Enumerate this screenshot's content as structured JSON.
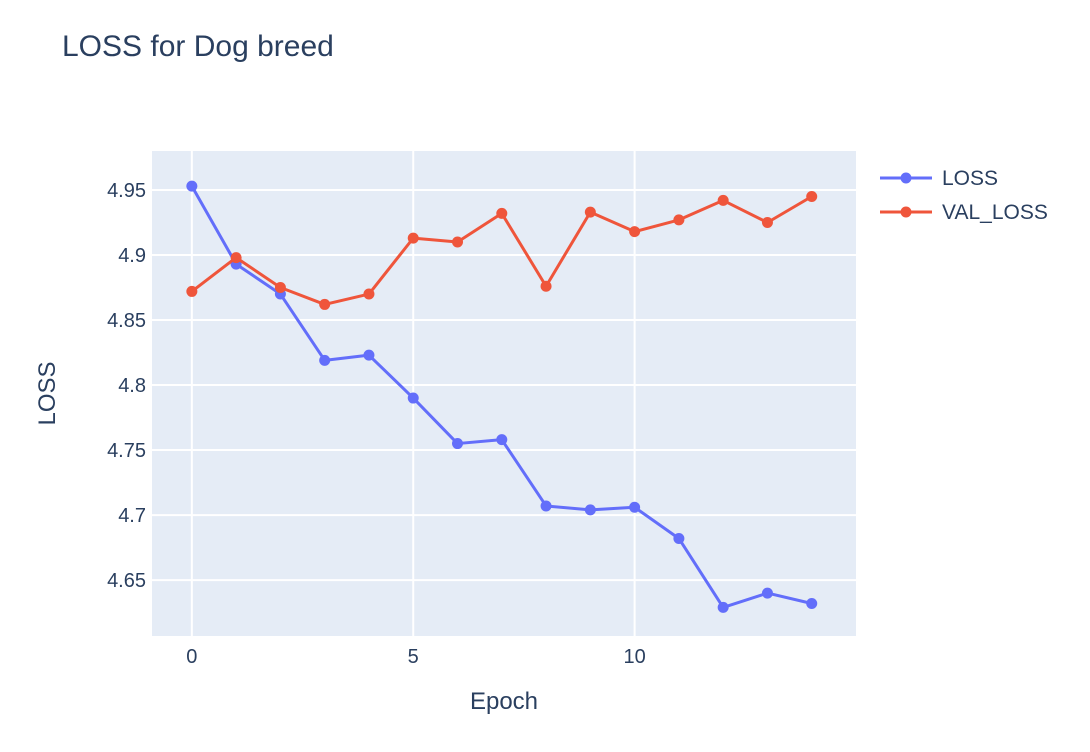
{
  "chart_data": {
    "type": "line",
    "title": "LOSS for Dog breed",
    "xlabel": "Epoch",
    "ylabel": "LOSS",
    "x": [
      0,
      1,
      2,
      3,
      4,
      5,
      6,
      7,
      8,
      9,
      10,
      11,
      12,
      13,
      14
    ],
    "xlim": [
      -0.9,
      15
    ],
    "ylim": [
      4.607,
      4.98
    ],
    "xticks": [
      0,
      5,
      10
    ],
    "yticks": [
      4.65,
      4.7,
      4.75,
      4.8,
      4.85,
      4.9,
      4.95
    ],
    "ytick_labels": [
      "4.65",
      "4.7",
      "4.75",
      "4.8",
      "4.85",
      "4.9",
      "4.95"
    ],
    "grid": true,
    "legend_position": "top-right-outside",
    "plot_bg": "#e5ecf6",
    "series": [
      {
        "name": "LOSS",
        "color": "#636efa",
        "values": [
          4.953,
          4.893,
          4.87,
          4.819,
          4.823,
          4.79,
          4.755,
          4.758,
          4.707,
          4.704,
          4.706,
          4.682,
          4.629,
          4.64,
          4.632
        ]
      },
      {
        "name": "VAL_LOSS",
        "color": "#ef553b",
        "values": [
          4.872,
          4.898,
          4.875,
          4.862,
          4.87,
          4.913,
          4.91,
          4.932,
          4.876,
          4.933,
          4.918,
          4.927,
          4.942,
          4.925,
          4.945
        ]
      }
    ]
  }
}
